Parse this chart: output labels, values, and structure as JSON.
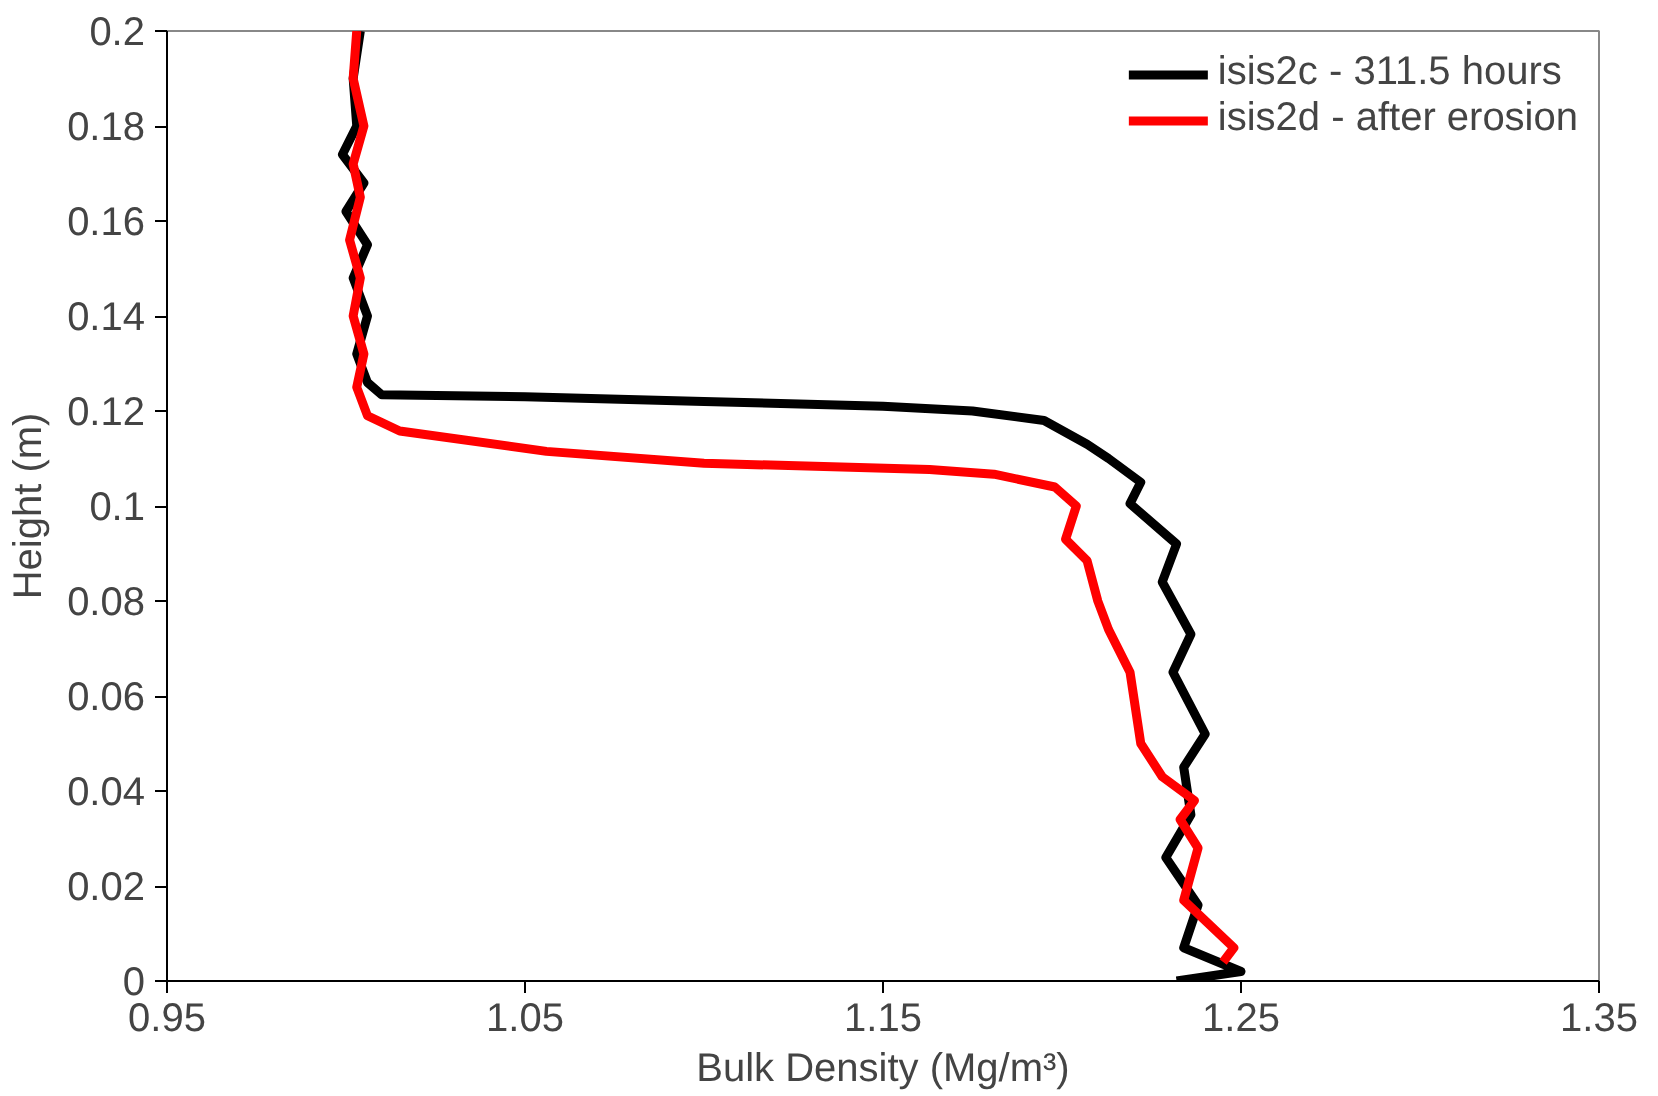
{
  "chart_data": {
    "type": "line",
    "xlabel": "Bulk Density (Mg/m³)",
    "ylabel": "Height (m)",
    "xlim": [
      0.95,
      1.35
    ],
    "xticks": [
      0.95,
      1.05,
      1.15,
      1.25,
      1.35
    ],
    "ylim": [
      0,
      0.2
    ],
    "yticks": [
      0,
      0.02,
      0.04,
      0.06,
      0.08,
      0.1,
      0.12,
      0.14,
      0.16,
      0.18,
      0.2
    ],
    "grid": false,
    "legend": "top right",
    "marker": "none",
    "line_style": "solid",
    "series": [
      {
        "name": "isis2c - 311.5 hours",
        "color": "#000000",
        "x": [
          1.232,
          1.25,
          1.234,
          1.238,
          1.229,
          1.236,
          1.234,
          1.24,
          1.231,
          1.236,
          1.228,
          1.232,
          1.219,
          1.222,
          1.213,
          1.207,
          1.195,
          1.175,
          1.15,
          1.1,
          1.05,
          1.01,
          1.006,
          1.003,
          1.006,
          1.002,
          1.006,
          1.0,
          1.005,
          0.999,
          1.003,
          1.002,
          1.004
        ],
        "values": [
          0.0,
          0.002,
          0.007,
          0.016,
          0.026,
          0.035,
          0.045,
          0.052,
          0.065,
          0.073,
          0.084,
          0.092,
          0.1005,
          0.105,
          0.11,
          0.113,
          0.118,
          0.12,
          0.121,
          0.122,
          0.123,
          0.1234,
          0.126,
          0.132,
          0.14,
          0.148,
          0.155,
          0.162,
          0.168,
          0.174,
          0.18,
          0.19,
          0.2
        ]
      },
      {
        "name": "isis2d - after erosion",
        "color": "#ff0000",
        "x": [
          1.245,
          1.248,
          1.234,
          1.238,
          1.233,
          1.237,
          1.228,
          1.222,
          1.219,
          1.213,
          1.21,
          1.207,
          1.201,
          1.204,
          1.198,
          1.181,
          1.163,
          1.1,
          1.056,
          1.015,
          1.006,
          1.003,
          1.005,
          1.002,
          1.004,
          1.001,
          1.004,
          1.002,
          1.005,
          1.002,
          1.003
        ],
        "values": [
          0.004,
          0.007,
          0.017,
          0.028,
          0.034,
          0.038,
          0.043,
          0.05,
          0.065,
          0.074,
          0.08,
          0.0885,
          0.093,
          0.1,
          0.104,
          0.1067,
          0.1077,
          0.109,
          0.1115,
          0.1158,
          0.119,
          0.125,
          0.132,
          0.14,
          0.148,
          0.156,
          0.165,
          0.172,
          0.18,
          0.19,
          0.2
        ]
      }
    ]
  }
}
